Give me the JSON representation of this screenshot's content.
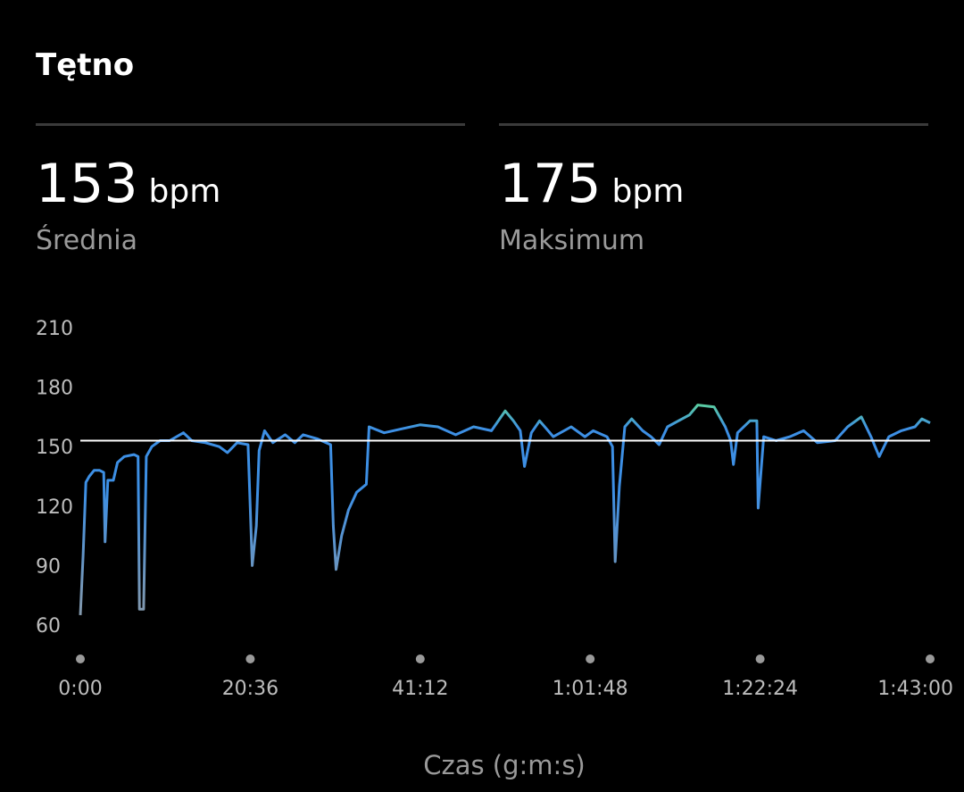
{
  "title": "Tętno",
  "stats": [
    {
      "value": 153,
      "unit": "bpm",
      "label": "Średnia"
    },
    {
      "value": 175,
      "unit": "bpm",
      "label": "Maksimum"
    }
  ],
  "chart_data": {
    "type": "line",
    "xlabel": "Czas (g:m:s)",
    "x": [
      0,
      20,
      40,
      65,
      100,
      140,
      170,
      180,
      200,
      240,
      270,
      320,
      390,
      420,
      430,
      460,
      480,
      520,
      580,
      650,
      750,
      810,
      910,
      1010,
      1070,
      1140,
      1220,
      1250,
      1280,
      1300,
      1340,
      1400,
      1490,
      1560,
      1620,
      1720,
      1820,
      1840,
      1860,
      1900,
      1950,
      2010,
      2080,
      2100,
      2210,
      2340,
      2470,
      2600,
      2730,
      2860,
      2990,
      3090,
      3150,
      3200,
      3230,
      3280,
      3340,
      3440,
      3570,
      3670,
      3730,
      3830,
      3870,
      3890,
      3920,
      3960,
      4010,
      4090,
      4150,
      4210,
      4270,
      4350,
      4430,
      4490,
      4610,
      4690,
      4730,
      4750,
      4780,
      4870,
      4920,
      4930,
      4970,
      5060,
      5160,
      5260,
      5360,
      5490,
      5580,
      5680,
      5750,
      5810,
      5880,
      5970,
      6070,
      6120,
      6180
    ],
    "series": [
      {
        "name": "Tętno",
        "color": "#3d8fe4",
        "values": [
          65,
          95,
          132,
          135,
          138,
          138,
          137,
          102,
          133,
          133,
          142,
          145,
          146,
          145,
          68,
          68,
          145,
          150,
          153,
          153,
          157,
          153,
          152,
          150,
          147,
          152,
          151,
          90,
          110,
          148,
          158,
          152,
          156,
          152,
          156,
          154,
          151,
          110,
          88,
          105,
          118,
          127,
          131,
          160,
          157,
          159,
          161,
          160,
          156,
          160,
          158,
          168,
          163,
          158,
          140,
          157,
          163,
          155,
          160,
          155,
          158,
          155,
          150,
          92,
          130,
          160,
          164,
          158,
          155,
          151,
          160,
          163,
          166,
          171,
          170,
          160,
          153,
          141,
          157,
          163,
          163,
          119,
          155,
          153,
          155,
          158,
          152,
          153,
          160,
          165,
          155,
          145,
          155,
          158,
          160,
          164,
          162
        ]
      }
    ],
    "xlim": [
      0,
      6180
    ],
    "xticks": [
      {
        "value": 0,
        "label": "0:00"
      },
      {
        "value": 1236,
        "label": "20:36"
      },
      {
        "value": 2472,
        "label": "41:12"
      },
      {
        "value": 3708,
        "label": "1:01:48"
      },
      {
        "value": 4944,
        "label": "1:22:24"
      },
      {
        "value": 6180,
        "label": "1:43:00"
      }
    ],
    "ylim": [
      60,
      210
    ],
    "yticks": [
      60,
      90,
      120,
      150,
      180,
      210
    ]
  }
}
